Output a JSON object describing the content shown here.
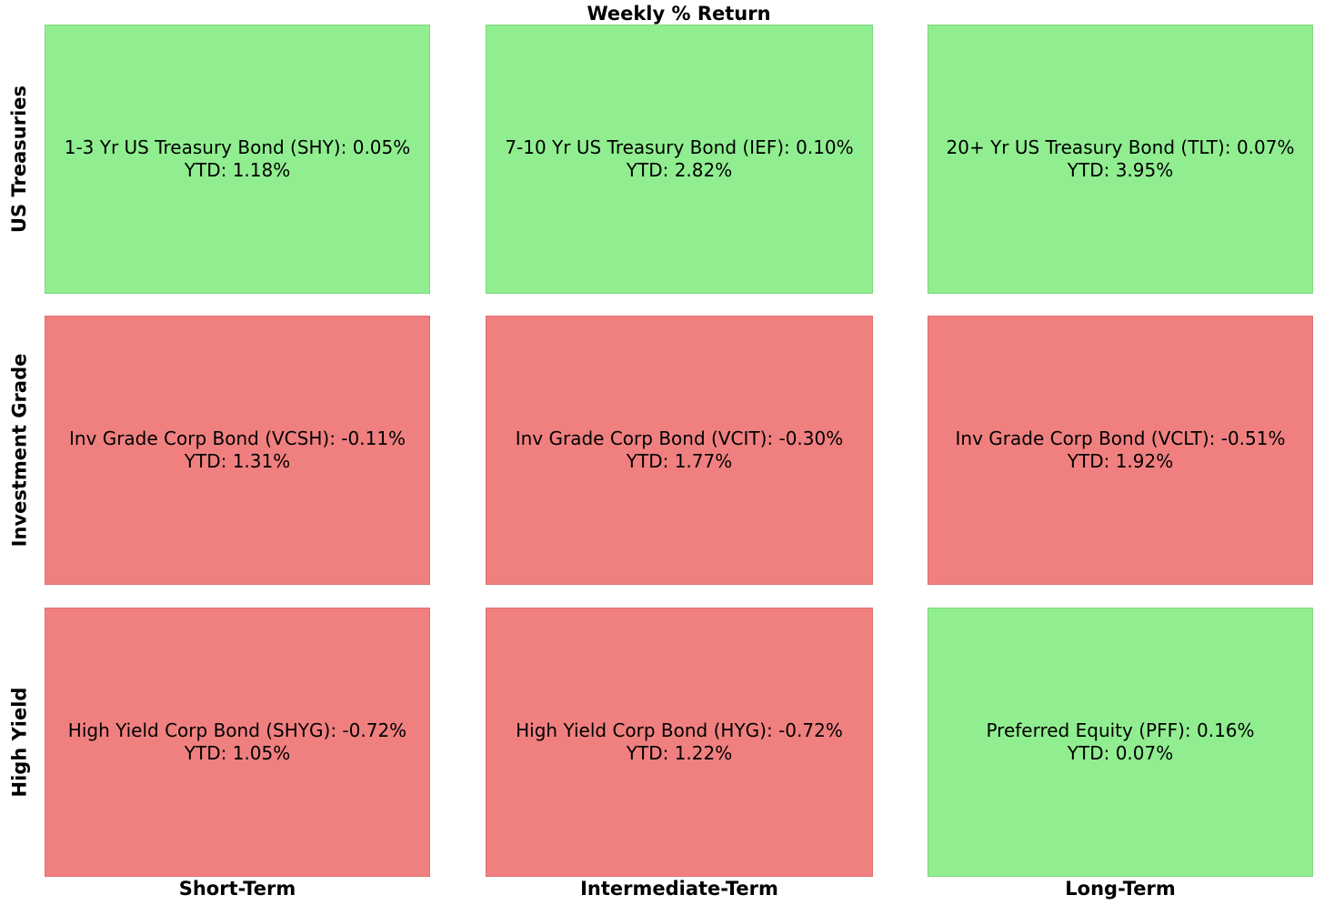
{
  "chart_data": {
    "type": "heatmap",
    "title": "Weekly % Return",
    "columns": [
      "Short-Term",
      "Intermediate-Term",
      "Long-Term"
    ],
    "rows": [
      "US Treasuries",
      "Investment Grade",
      "High Yield"
    ],
    "colors": {
      "positive": "#90ee90",
      "negative": "#f08080"
    },
    "cells": [
      [
        {
          "name": "1-3 Yr US Treasury Bond (SHY)",
          "weekly": 0.05,
          "weekly_text": "0.05%",
          "ytd_text": "YTD: 1.18%"
        },
        {
          "name": "7-10 Yr US Treasury Bond (IEF)",
          "weekly": 0.1,
          "weekly_text": "0.10%",
          "ytd_text": "YTD: 2.82%"
        },
        {
          "name": "20+ Yr US Treasury Bond (TLT)",
          "weekly": 0.07,
          "weekly_text": "0.07%",
          "ytd_text": "YTD: 3.95%"
        }
      ],
      [
        {
          "name": "Inv Grade Corp Bond (VCSH)",
          "weekly": -0.11,
          "weekly_text": "-0.11%",
          "ytd_text": "YTD: 1.31%"
        },
        {
          "name": "Inv Grade Corp Bond (VCIT)",
          "weekly": -0.3,
          "weekly_text": "-0.30%",
          "ytd_text": "YTD: 1.77%"
        },
        {
          "name": "Inv Grade Corp Bond (VCLT)",
          "weekly": -0.51,
          "weekly_text": "-0.51%",
          "ytd_text": "YTD: 1.92%"
        }
      ],
      [
        {
          "name": "High Yield Corp Bond (SHYG)",
          "weekly": -0.72,
          "weekly_text": "-0.72%",
          "ytd_text": "YTD: 1.05%"
        },
        {
          "name": "High Yield Corp Bond (HYG)",
          "weekly": -0.72,
          "weekly_text": "-0.72%",
          "ytd_text": "YTD: 1.22%"
        },
        {
          "name": "Preferred Equity (PFF)",
          "weekly": 0.16,
          "weekly_text": "0.16%",
          "ytd_text": "YTD: 0.07%"
        }
      ]
    ]
  }
}
